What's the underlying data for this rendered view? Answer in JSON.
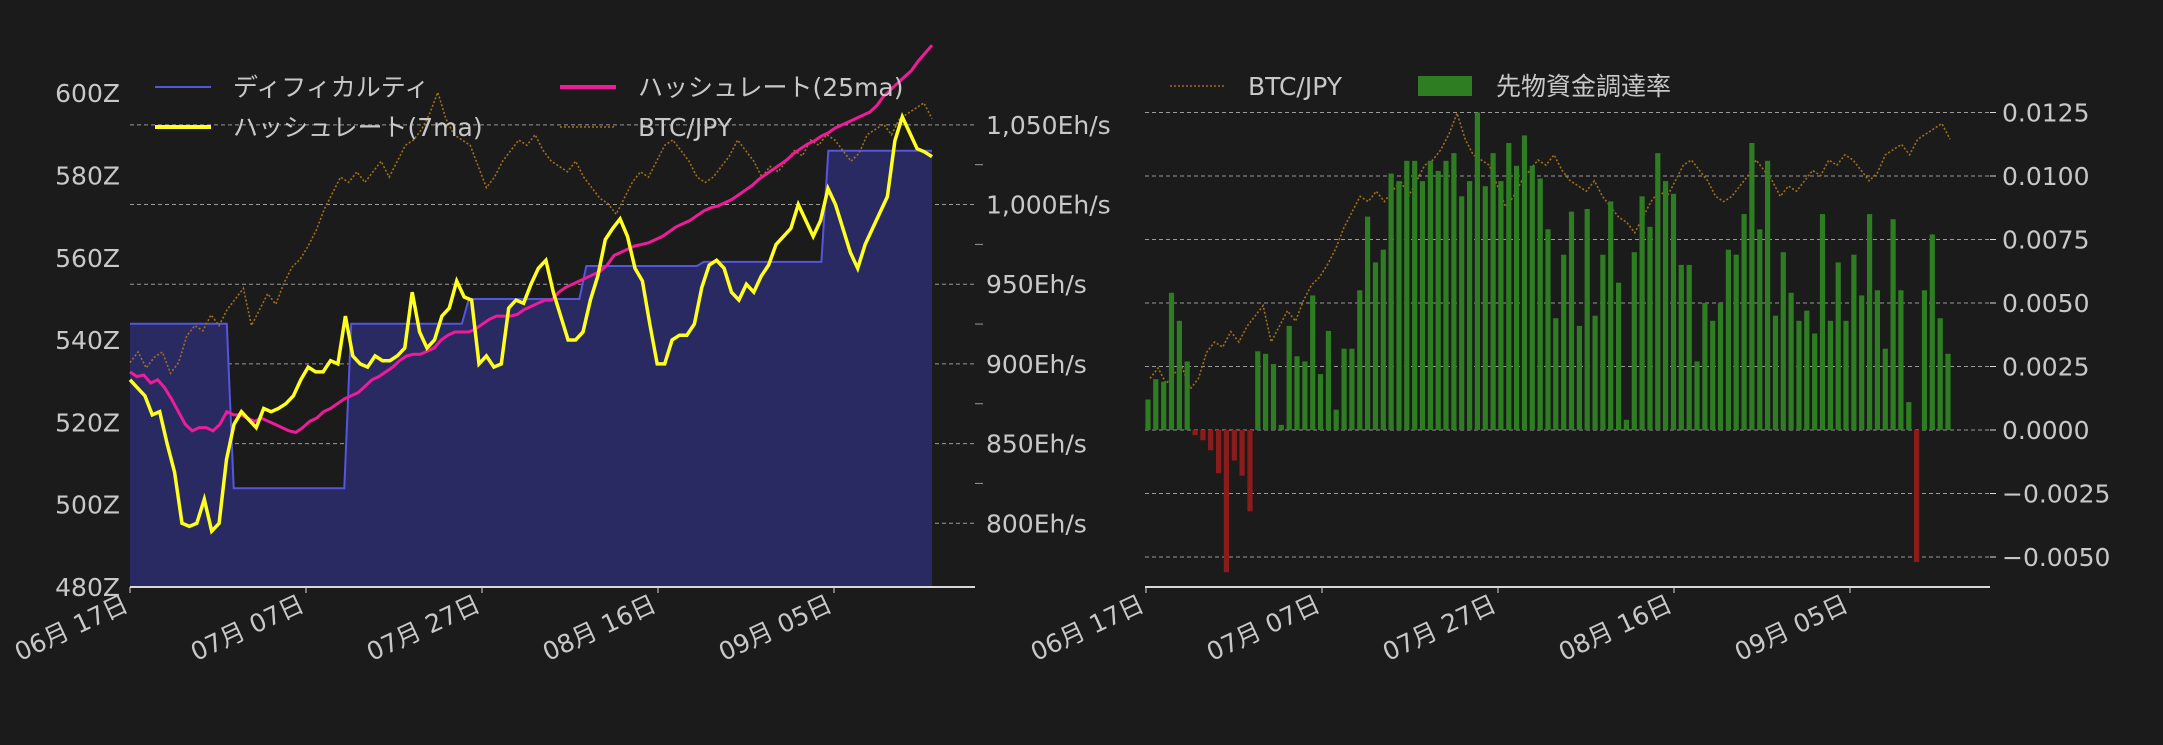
{
  "chart_data": [
    {
      "type": "line",
      "x_ticks": [
        "06月 17日",
        "07月 07日",
        "07月 27日",
        "08月 16日",
        "09月 05日"
      ],
      "y_left_ticks": [
        "480Z",
        "500Z",
        "520Z",
        "540Z",
        "560Z",
        "580Z",
        "600Z"
      ],
      "y_left_values": [
        480,
        500,
        520,
        540,
        560,
        580,
        600
      ],
      "y_left_range": [
        480,
        602
      ],
      "y_right_ticks": [
        "800Eh/s",
        "850Eh/s",
        "900Eh/s",
        "950Eh/s",
        "1,000Eh/s",
        "1,050Eh/s"
      ],
      "y_right_values": [
        800,
        850,
        900,
        950,
        1000,
        1050
      ],
      "y_right_range": [
        760,
        1075
      ],
      "legend": [
        {
          "label": "ディフィカルティ",
          "color": "#5555dd",
          "style": "area"
        },
        {
          "label": "ハッシュレート(25ma)",
          "color": "#ee1c9b",
          "style": "line"
        },
        {
          "label": "ハッシュレート(7ma)",
          "color": "#ffff22",
          "style": "line"
        },
        {
          "label": "BTC/JPY",
          "color": "#a0701a",
          "style": "dotted"
        }
      ],
      "series": {
        "difficulty": [
          544,
          544,
          544,
          544,
          544,
          544,
          544,
          544,
          544,
          544,
          544,
          544,
          544,
          544,
          544,
          504,
          504,
          504,
          504,
          504,
          504,
          504,
          504,
          504,
          504,
          504,
          504,
          504,
          504,
          504,
          504,
          504,
          544,
          544,
          544,
          544,
          544,
          544,
          544,
          544,
          544,
          544,
          544,
          544,
          544,
          544,
          544,
          544,
          544,
          550,
          550,
          550,
          550,
          550,
          550,
          550,
          550,
          550,
          550,
          550,
          550,
          550,
          550,
          550,
          550,
          550,
          558,
          558,
          558,
          558,
          558,
          558,
          558,
          558,
          558,
          558,
          558,
          558,
          558,
          558,
          558,
          558,
          558,
          559,
          559,
          559,
          559,
          559,
          559,
          559,
          559,
          559,
          559,
          559,
          559,
          559,
          559,
          559,
          559,
          559,
          559,
          586,
          586,
          586,
          586,
          586,
          586,
          586,
          586,
          586,
          586,
          586,
          586,
          586,
          586,
          586,
          586
        ],
        "hashrate_7ma": [
          890,
          885,
          880,
          868,
          870,
          850,
          832,
          800,
          798,
          800,
          815,
          795,
          800,
          840,
          862,
          870,
          865,
          860,
          872,
          870,
          872,
          875,
          880,
          890,
          898,
          895,
          895,
          902,
          900,
          930,
          905,
          900,
          898,
          905,
          902,
          902,
          905,
          910,
          945,
          920,
          910,
          915,
          930,
          935,
          952,
          942,
          940,
          900,
          905,
          898,
          900,
          935,
          940,
          938,
          950,
          960,
          965,
          945,
          930,
          915,
          915,
          920,
          940,
          955,
          978,
          985,
          991,
          980,
          960,
          952,
          925,
          900,
          900,
          915,
          918,
          918,
          925,
          948,
          962,
          965,
          960,
          945,
          940,
          950,
          945,
          955,
          962,
          975,
          980,
          985,
          1000,
          990,
          980,
          990,
          1010,
          1000,
          985,
          970,
          960,
          975,
          985,
          995,
          1005,
          1040,
          1055,
          1045,
          1035,
          1033,
          1030
        ],
        "hashrate_25ma": [
          895,
          892,
          893,
          888,
          890,
          885,
          878,
          870,
          862,
          858,
          860,
          860,
          858,
          862,
          870,
          868,
          868,
          866,
          864,
          866,
          864,
          862,
          860,
          858,
          857,
          860,
          864,
          866,
          870,
          872,
          875,
          878,
          880,
          882,
          886,
          890,
          892,
          895,
          898,
          902,
          905,
          906,
          906,
          908,
          910,
          915,
          918,
          920,
          920,
          920,
          922,
          925,
          928,
          930,
          930,
          930,
          931,
          934,
          936,
          938,
          940,
          940,
          945,
          948,
          950,
          952,
          954,
          956,
          958,
          962,
          968,
          970,
          972,
          974,
          975,
          976,
          978,
          980,
          983,
          986,
          988,
          990,
          993,
          996,
          998,
          999,
          1001,
          1003,
          1006,
          1009,
          1012,
          1016,
          1019,
          1022,
          1025,
          1028,
          1032,
          1035,
          1038,
          1040,
          1043,
          1045,
          1048,
          1050,
          1052,
          1054,
          1056,
          1058,
          1062,
          1068,
          1072,
          1076,
          1080,
          1084,
          1090,
          1095,
          1100
        ],
        "btc_jpy": [
          0.16,
          0.2,
          0.14,
          0.18,
          0.2,
          0.12,
          0.16,
          0.26,
          0.3,
          0.28,
          0.34,
          0.3,
          0.36,
          0.4,
          0.44,
          0.3,
          0.36,
          0.42,
          0.38,
          0.46,
          0.52,
          0.55,
          0.6,
          0.66,
          0.74,
          0.8,
          0.86,
          0.84,
          0.88,
          0.84,
          0.88,
          0.92,
          0.86,
          0.92,
          0.98,
          1.0,
          1.04,
          1.1,
          1.18,
          1.08,
          1.02,
          1.0,
          0.98,
          0.9,
          0.82,
          0.86,
          0.92,
          0.96,
          1.0,
          0.98,
          1.02,
          0.96,
          0.92,
          0.9,
          0.88,
          0.92,
          0.86,
          0.82,
          0.78,
          0.76,
          0.72,
          0.78,
          0.84,
          0.88,
          0.86,
          0.92,
          0.98,
          1.0,
          0.96,
          0.92,
          0.86,
          0.84,
          0.86,
          0.9,
          0.94,
          1.0,
          0.96,
          0.92,
          0.86,
          0.9,
          0.88,
          0.92,
          0.96,
          0.94,
          1.0,
          0.98,
          1.02,
          1.0,
          0.96,
          0.92,
          0.95,
          1.02,
          1.04,
          1.06,
          1.02,
          1.08,
          1.1,
          1.12,
          1.14,
          1.08
        ]
      }
    },
    {
      "type": "bar",
      "x_ticks": [
        "06月 17日",
        "07月 07日",
        "07月 27日",
        "08月 16日",
        "09月 05日"
      ],
      "y_ticks": [
        "−0.0050",
        "−0.0025",
        "0.0000",
        "0.0025",
        "0.0050",
        "0.0075",
        "0.0100",
        "0.0125"
      ],
      "y_values": [
        -0.005,
        -0.0025,
        0.0,
        0.0025,
        0.005,
        0.0075,
        0.01,
        0.0125
      ],
      "ylim": [
        -0.0062,
        0.0125
      ],
      "legend": [
        {
          "label": "BTC/JPY",
          "color": "#a0701a",
          "style": "dotted"
        },
        {
          "label": "先物資金調達率",
          "color": "#2e7d22",
          "style": "bar"
        }
      ],
      "funding_rate": [
        0.0012,
        0.002,
        0.0019,
        0.0054,
        0.0043,
        0.0027,
        -0.0002,
        -0.0004,
        -0.0008,
        -0.0017,
        -0.0056,
        -0.0012,
        -0.0018,
        -0.0032,
        0.0031,
        0.003,
        0.0026,
        0.0002,
        0.0041,
        0.0029,
        0.0027,
        0.0053,
        0.0022,
        0.0039,
        0.0008,
        0.0032,
        0.0032,
        0.0055,
        0.0084,
        0.0066,
        0.0071,
        0.0101,
        0.0098,
        0.0106,
        0.0106,
        0.0098,
        0.0106,
        0.0102,
        0.0106,
        0.0109,
        0.0092,
        0.0098,
        0.0125,
        0.0096,
        0.0109,
        0.0098,
        0.0113,
        0.0104,
        0.0116,
        0.0104,
        0.0099,
        0.0079,
        0.0044,
        0.0069,
        0.0086,
        0.0041,
        0.0087,
        0.0045,
        0.0069,
        0.009,
        0.0058,
        0.0004,
        0.007,
        0.0092,
        0.008,
        0.0109,
        0.0098,
        0.0093,
        0.0065,
        0.0065,
        0.0027,
        0.005,
        0.0043,
        0.005,
        0.0071,
        0.0069,
        0.0085,
        0.0113,
        0.0079,
        0.0106,
        0.0045,
        0.007,
        0.0054,
        0.0043,
        0.0047,
        0.0038,
        0.0085,
        0.0043,
        0.0066,
        0.0043,
        0.0069,
        0.0053,
        0.0085,
        0.0055,
        0.0032,
        0.0083,
        0.0055,
        0.0011,
        -0.0052,
        0.0055,
        0.0077,
        0.0044,
        0.003
      ],
      "btc_jpy": [
        0.16,
        0.2,
        0.14,
        0.18,
        0.2,
        0.12,
        0.16,
        0.26,
        0.3,
        0.28,
        0.34,
        0.3,
        0.36,
        0.4,
        0.44,
        0.3,
        0.36,
        0.42,
        0.38,
        0.46,
        0.52,
        0.55,
        0.6,
        0.66,
        0.74,
        0.8,
        0.86,
        0.84,
        0.88,
        0.84,
        0.88,
        0.92,
        0.86,
        0.92,
        0.98,
        1.0,
        1.04,
        1.1,
        1.18,
        1.08,
        1.02,
        1.0,
        0.98,
        0.9,
        0.82,
        0.86,
        0.92,
        0.96,
        1.0,
        0.98,
        1.02,
        0.96,
        0.92,
        0.9,
        0.88,
        0.92,
        0.86,
        0.82,
        0.78,
        0.76,
        0.72,
        0.78,
        0.84,
        0.88,
        0.86,
        0.92,
        0.98,
        1.0,
        0.96,
        0.92,
        0.86,
        0.84,
        0.86,
        0.9,
        0.94,
        1.0,
        0.96,
        0.92,
        0.86,
        0.9,
        0.88,
        0.92,
        0.96,
        0.94,
        1.0,
        0.98,
        1.02,
        1.0,
        0.96,
        0.92,
        0.95,
        1.02,
        1.04,
        1.06,
        1.02,
        1.08,
        1.1,
        1.12,
        1.14,
        1.08
      ]
    }
  ]
}
